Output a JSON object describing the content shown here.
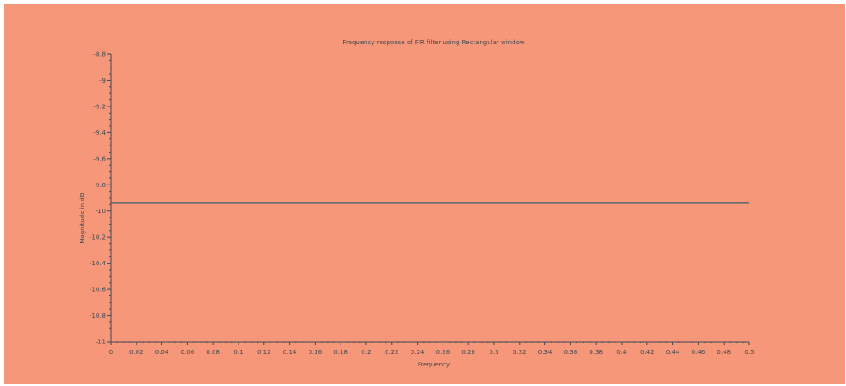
{
  "chart_data": {
    "type": "line",
    "title": "Frequency response of FIR filter using Rectangular window",
    "xlabel": "Frequency",
    "ylabel": "Magnitude in dB",
    "xlim": [
      0,
      0.5
    ],
    "ylim": [
      -11,
      -8.8
    ],
    "x_ticks": [
      0,
      0.02,
      0.04,
      0.06,
      0.08,
      0.1,
      0.12,
      0.14,
      0.16,
      0.18,
      0.2,
      0.22,
      0.24,
      0.26,
      0.28,
      0.3,
      0.32,
      0.34,
      0.36,
      0.38,
      0.4,
      0.42,
      0.44,
      0.46,
      0.48,
      0.5
    ],
    "y_ticks": [
      -8.8,
      -9,
      -9.2,
      -9.4,
      -9.6,
      -9.8,
      -10,
      -10.2,
      -10.4,
      -10.6,
      -10.8,
      -11
    ],
    "grid": false,
    "series": [
      {
        "x": [
          0,
          0.5
        ],
        "y": [
          -9.94,
          -9.94
        ],
        "color": "#3f5e6e"
      }
    ]
  },
  "colors": {
    "background": "#f59778",
    "axis": "#3f4a55",
    "line": "#3f5e6e"
  }
}
